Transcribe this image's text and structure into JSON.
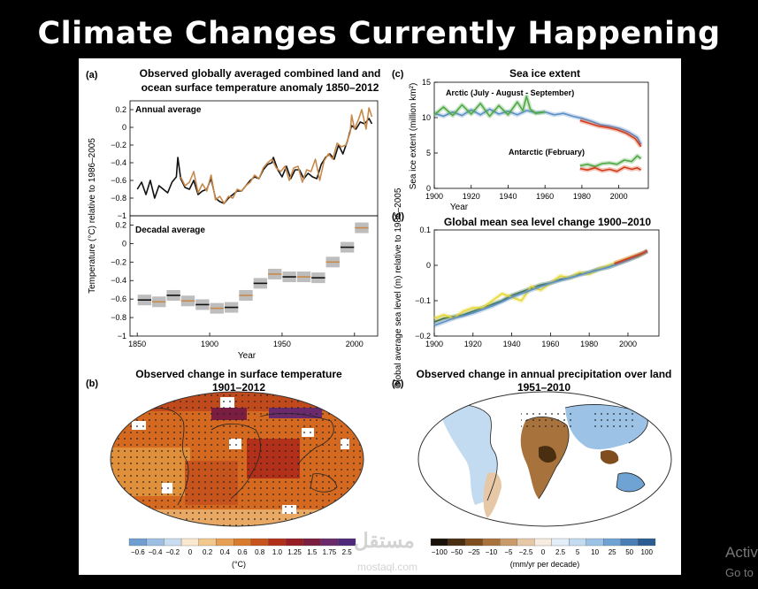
{
  "slide": {
    "title": "Climate Changes Currently Happening",
    "watermark": "مستقل",
    "watermark_sub": "mostaql.com",
    "activate_text": "Activ",
    "activate_sub": "Go to"
  },
  "colors": {
    "black_series": "#111111",
    "orange_series": "#c8894a",
    "blue_series": "#5b8fc7",
    "green_series": "#4fa845",
    "red_series": "#d43d1a",
    "yellow_series": "#e6d82e",
    "darkgreen_series": "#3a6e3a"
  },
  "chart_data": [
    {
      "id": "a-annual",
      "type": "line",
      "panel_label": "(a)",
      "title": "Observed globally averaged combined land and",
      "title_line2": "ocean surface temperature anomaly 1850–2012",
      "subtitle": "Annual average",
      "ylabel": "Temperature (°C) relative to 1986–2005",
      "xlim": [
        1845,
        2016
      ],
      "ylim": [
        -1,
        0.3
      ],
      "yticks": [
        0.2,
        0,
        -0.2,
        -0.4,
        -0.6,
        -0.8,
        -1
      ],
      "ytick_labels": [
        "0.2",
        "0",
        "−0.2",
        "−0.4",
        "−0.6",
        "−0.8",
        "−1"
      ],
      "series": [
        {
          "color": "#111111",
          "x": [
            1850,
            1853,
            1856,
            1859,
            1862,
            1865,
            1868,
            1871,
            1874,
            1877,
            1878,
            1880,
            1883,
            1886,
            1889,
            1892,
            1895,
            1898,
            1901,
            1904,
            1907,
            1910,
            1913,
            1916,
            1919,
            1922,
            1925,
            1928,
            1931,
            1934,
            1937,
            1940,
            1943,
            1944,
            1947,
            1950,
            1953,
            1956,
            1959,
            1962,
            1965,
            1968,
            1971,
            1974,
            1977,
            1980,
            1983,
            1986,
            1989,
            1992,
            1995,
            1998,
            2001,
            2004,
            2007,
            2010,
            2012
          ],
          "y": [
            -0.7,
            -0.62,
            -0.76,
            -0.6,
            -0.8,
            -0.66,
            -0.7,
            -0.74,
            -0.62,
            -0.56,
            -0.34,
            -0.58,
            -0.68,
            -0.7,
            -0.6,
            -0.76,
            -0.72,
            -0.7,
            -0.58,
            -0.8,
            -0.84,
            -0.86,
            -0.8,
            -0.76,
            -0.72,
            -0.72,
            -0.66,
            -0.6,
            -0.56,
            -0.58,
            -0.48,
            -0.42,
            -0.4,
            -0.34,
            -0.48,
            -0.56,
            -0.44,
            -0.58,
            -0.48,
            -0.48,
            -0.58,
            -0.52,
            -0.56,
            -0.58,
            -0.42,
            -0.34,
            -0.3,
            -0.36,
            -0.2,
            -0.3,
            -0.16,
            0.02,
            -0.02,
            0.06,
            0.04,
            0.1,
            0.04
          ]
        },
        {
          "color": "#c8894a",
          "x": [
            1880,
            1883,
            1886,
            1889,
            1892,
            1895,
            1898,
            1901,
            1904,
            1907,
            1910,
            1913,
            1916,
            1919,
            1922,
            1925,
            1928,
            1931,
            1934,
            1937,
            1940,
            1943,
            1946,
            1949,
            1952,
            1955,
            1958,
            1961,
            1964,
            1967,
            1970,
            1973,
            1976,
            1979,
            1982,
            1985,
            1988,
            1991,
            1994,
            1997,
            1998,
            2000,
            2003,
            2005,
            2008,
            2010,
            2012
          ],
          "y": [
            -0.56,
            -0.66,
            -0.62,
            -0.5,
            -0.74,
            -0.64,
            -0.72,
            -0.54,
            -0.82,
            -0.78,
            -0.86,
            -0.78,
            -0.8,
            -0.7,
            -0.72,
            -0.66,
            -0.62,
            -0.54,
            -0.58,
            -0.46,
            -0.4,
            -0.36,
            -0.46,
            -0.5,
            -0.44,
            -0.6,
            -0.46,
            -0.44,
            -0.62,
            -0.48,
            -0.5,
            -0.36,
            -0.6,
            -0.38,
            -0.3,
            -0.36,
            -0.18,
            -0.22,
            -0.2,
            -0.06,
            0.14,
            -0.02,
            0.1,
            0.2,
            -0.02,
            0.22,
            0.12
          ]
        }
      ]
    },
    {
      "id": "a-decadal",
      "type": "bar",
      "subtitle": "Decadal average",
      "xlabel": "Year",
      "xlim": [
        1845,
        2016
      ],
      "ylim": [
        -1,
        0.3
      ],
      "yticks": [
        0.2,
        0,
        -0.2,
        -0.4,
        -0.6,
        -0.8,
        -1
      ],
      "ytick_labels": [
        "0.2",
        "0",
        "−0.2",
        "−0.4",
        "−0.6",
        "−0.8",
        "−1"
      ],
      "xticks": [
        1850,
        1900,
        1950,
        2000
      ],
      "xtick_labels": [
        "1850",
        "1900",
        "1950",
        "2000"
      ],
      "decades_start": [
        1850,
        1860,
        1870,
        1880,
        1890,
        1900,
        1910,
        1920,
        1930,
        1940,
        1950,
        1960,
        1970,
        1980,
        1990,
        2000
      ],
      "values": [
        -0.61,
        -0.63,
        -0.56,
        -0.62,
        -0.66,
        -0.7,
        -0.69,
        -0.56,
        -0.43,
        -0.33,
        -0.36,
        -0.36,
        -0.37,
        -0.2,
        -0.04,
        0.17
      ]
    },
    {
      "id": "c",
      "type": "line",
      "panel_label": "(c)",
      "title": "Sea ice extent",
      "ylabel": "Sea ice extent (million km²)",
      "xlabel": "Year",
      "xlim": [
        1900,
        2016
      ],
      "ylim": [
        0,
        15
      ],
      "yticks": [
        0,
        5,
        10,
        15
      ],
      "ytick_labels": [
        "0",
        "5",
        "10",
        "15"
      ],
      "xticks": [
        1900,
        1920,
        1940,
        1960,
        1980,
        2000
      ],
      "xtick_labels": [
        "1900",
        "1920",
        "1940",
        "1960",
        "1980",
        "2000"
      ],
      "annotations": [
        "Arctic (July - August - September)",
        "Antarctic (February)"
      ],
      "series": [
        {
          "color": "#5b8fc7",
          "x": [
            1900,
            1905,
            1910,
            1915,
            1920,
            1925,
            1930,
            1935,
            1940,
            1945,
            1950,
            1955,
            1960,
            1965,
            1970,
            1975,
            1980,
            1985,
            1990,
            1995,
            2000,
            2005,
            2010,
            2012
          ],
          "y": [
            10.6,
            10.2,
            10.8,
            10.3,
            11.1,
            10.4,
            11.2,
            10.5,
            10.9,
            10.4,
            11.0,
            10.7,
            10.8,
            10.4,
            10.6,
            10.2,
            9.9,
            9.5,
            9.0,
            8.8,
            8.5,
            8.0,
            7.2,
            6.2
          ]
        },
        {
          "color": "#4fa845",
          "x": [
            1900,
            1905,
            1910,
            1915,
            1920,
            1925,
            1930,
            1935,
            1940,
            1945,
            1948,
            1950,
            1952,
            1955,
            1960
          ],
          "y": [
            10.4,
            11.5,
            10.3,
            11.8,
            10.5,
            12.0,
            10.2,
            11.7,
            10.4,
            12.2,
            11.0,
            13.0,
            11.2,
            10.6,
            10.8
          ]
        },
        {
          "color": "#d43d1a",
          "x": [
            1979,
            1984,
            1989,
            1994,
            1999,
            2004,
            2009,
            2012
          ],
          "y": [
            9.6,
            9.2,
            8.8,
            8.6,
            8.3,
            7.8,
            7.0,
            5.9
          ]
        },
        {
          "color": "#4fa845",
          "x": [
            1979,
            1983,
            1987,
            1991,
            1995,
            1999,
            2003,
            2007,
            2010,
            2012
          ],
          "y": [
            3.2,
            3.4,
            3.1,
            3.5,
            3.6,
            3.4,
            4.0,
            3.8,
            4.6,
            4.2
          ]
        },
        {
          "color": "#d43d1a",
          "x": [
            1979,
            1983,
            1987,
            1991,
            1995,
            1999,
            2003,
            2007,
            2010,
            2012
          ],
          "y": [
            2.8,
            2.6,
            2.9,
            2.5,
            2.7,
            2.4,
            3.0,
            2.7,
            2.9,
            2.6
          ]
        }
      ]
    },
    {
      "id": "d",
      "type": "line",
      "panel_label": "(d)",
      "title": "Global mean sea level change 1900–2010",
      "ylabel": "Global average sea level (m) relative to 1986–2005",
      "xlabel": "Year",
      "xlim": [
        1900,
        2016
      ],
      "ylim": [
        -0.2,
        0.1
      ],
      "yticks": [
        0.1,
        0,
        -0.1,
        -0.2
      ],
      "ytick_labels": [
        "0.1",
        "0",
        "−0.1",
        "−0.2"
      ],
      "xticks": [
        1900,
        1920,
        1940,
        1960,
        1980,
        2000
      ],
      "xtick_labels": [
        "1900",
        "1920",
        "1940",
        "1960",
        "1980",
        "2000"
      ],
      "series": [
        {
          "color": "#3a6e3a",
          "x": [
            1900,
            1905,
            1910,
            1915,
            1920,
            1925,
            1930,
            1935,
            1940,
            1945,
            1950,
            1955,
            1960,
            1965,
            1970,
            1975,
            1980,
            1985,
            1990,
            1995,
            2000,
            2005,
            2010
          ],
          "y": [
            -0.16,
            -0.15,
            -0.145,
            -0.14,
            -0.13,
            -0.12,
            -0.11,
            -0.1,
            -0.085,
            -0.075,
            -0.065,
            -0.055,
            -0.05,
            -0.04,
            -0.035,
            -0.025,
            -0.02,
            -0.01,
            -0.005,
            0.005,
            0.015,
            0.025,
            0.04
          ]
        },
        {
          "color": "#e6d82e",
          "x": [
            1900,
            1905,
            1910,
            1915,
            1920,
            1925,
            1930,
            1935,
            1940,
            1945,
            1950,
            1955,
            1960,
            1965,
            1970,
            1975,
            1980,
            1985,
            1990,
            1995,
            2000,
            2005,
            2008
          ],
          "y": [
            -0.15,
            -0.14,
            -0.15,
            -0.13,
            -0.12,
            -0.12,
            -0.1,
            -0.08,
            -0.09,
            -0.1,
            -0.06,
            -0.07,
            -0.05,
            -0.03,
            -0.035,
            -0.02,
            -0.025,
            -0.01,
            0.0,
            0.01,
            0.02,
            0.03,
            0.035
          ]
        },
        {
          "color": "#5b8fc7",
          "x": [
            1900,
            1910,
            1920,
            1930,
            1940,
            1950,
            1960,
            1970,
            1980,
            1990,
            2000,
            2010
          ],
          "y": [
            -0.17,
            -0.15,
            -0.135,
            -0.115,
            -0.09,
            -0.07,
            -0.05,
            -0.035,
            -0.02,
            -0.005,
            0.015,
            0.04
          ]
        },
        {
          "color": "#d43d1a",
          "x": [
            1993,
            1998,
            2003,
            2008,
            2010
          ],
          "y": [
            0.005,
            0.015,
            0.025,
            0.035,
            0.042
          ]
        }
      ]
    },
    {
      "id": "b",
      "type": "heatmap",
      "panel_label": "(b)",
      "title": "Observed change in surface temperature",
      "title_line2": "1901–2012",
      "colorbar_unit": "(°C)",
      "colorbar_ticks": [
        "−0.6",
        "−0.4",
        "−0.2",
        "0",
        "0.2",
        "0.4",
        "0.6",
        "0.8",
        "1.0",
        "1.25",
        "1.5",
        "1.75",
        "2.5"
      ],
      "colorbar_colors": [
        "#6f9fd1",
        "#9dbfe3",
        "#c9dcf0",
        "#fbe9cf",
        "#f2c88c",
        "#e7a053",
        "#d97b2c",
        "#c7531d",
        "#b2301a",
        "#961d23",
        "#7a1d40",
        "#6a2a6c",
        "#4f2a7a"
      ]
    },
    {
      "id": "e",
      "type": "heatmap",
      "panel_label": "(e)",
      "title": "Observed change in annual precipitation over land",
      "title_line2": "1951–2010",
      "colorbar_unit": "(mm/yr per decade)",
      "colorbar_ticks": [
        "−100",
        "−50",
        "−25",
        "−10",
        "−5",
        "−2.5",
        "0",
        "2.5",
        "5",
        "10",
        "25",
        "50",
        "100"
      ],
      "colorbar_colors": [
        "#1a1208",
        "#4a2e12",
        "#7f4d1e",
        "#a8723c",
        "#c99a6a",
        "#e6c8a6",
        "#f6ecdf",
        "#e4eef8",
        "#c3dbf0",
        "#9cc3e6",
        "#6fa3d3",
        "#4a7fb5",
        "#2b5d92"
      ]
    }
  ]
}
